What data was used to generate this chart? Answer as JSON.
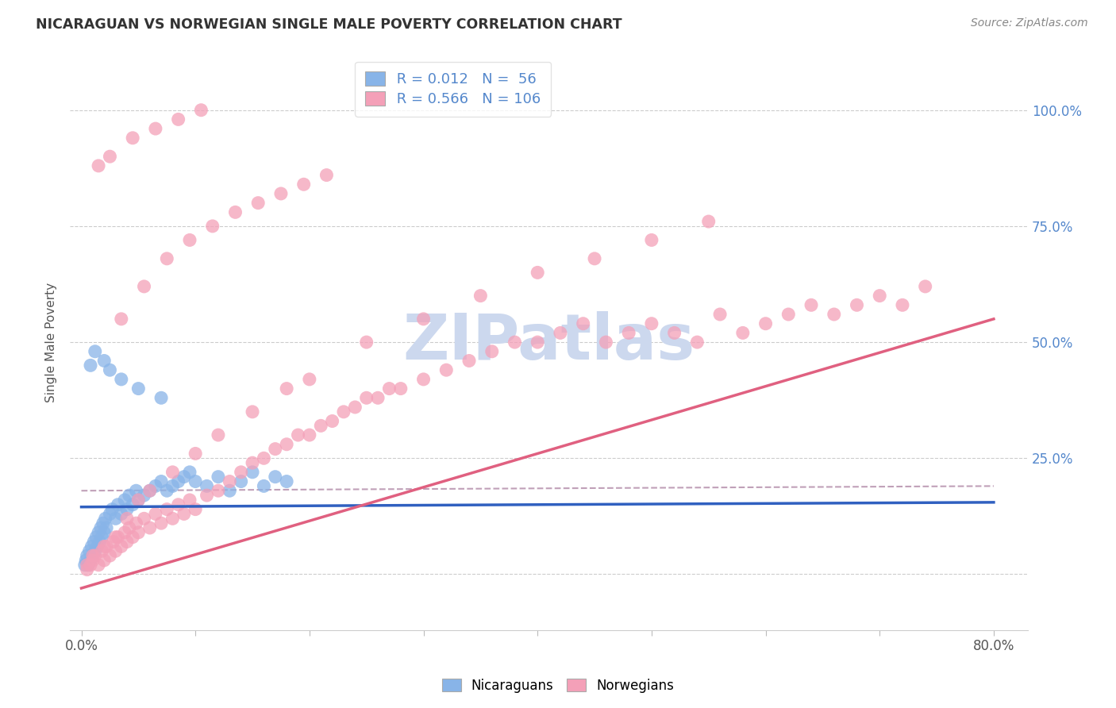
{
  "title": "NICARAGUAN VS NORWEGIAN SINGLE MALE POVERTY CORRELATION CHART",
  "source": "Source: ZipAtlas.com",
  "ylabel": "Single Male Poverty",
  "ytick_values": [
    0.0,
    0.25,
    0.5,
    0.75,
    1.0
  ],
  "ytick_labels": [
    "",
    "25.0%",
    "50.0%",
    "75.0%",
    "100.0%"
  ],
  "xtick_positions": [
    0.0,
    0.1,
    0.2,
    0.3,
    0.4,
    0.5,
    0.6,
    0.7,
    0.8
  ],
  "xtick_labels": [
    "0.0%",
    "",
    "",
    "",
    "",
    "",
    "",
    "",
    "80.0%"
  ],
  "xlim": [
    -0.01,
    0.83
  ],
  "ylim": [
    -0.12,
    1.12
  ],
  "blue_color": "#88b4e8",
  "pink_color": "#f4a0b8",
  "blue_line_color": "#3060c0",
  "pink_line_color": "#e06080",
  "pink_dash_color": "#c0a0b8",
  "watermark_text": "ZIPatlas",
  "watermark_color": "#ccd8ee",
  "R_blue": 0.012,
  "N_blue": 56,
  "R_pink": 0.566,
  "N_pink": 106,
  "background_color": "#ffffff",
  "grid_color": "#cccccc",
  "tick_color": "#5588cc",
  "title_color": "#333333",
  "source_color": "#888888",
  "legend_label_color": "#5588cc",
  "blue_x": [
    0.003,
    0.004,
    0.005,
    0.006,
    0.007,
    0.008,
    0.009,
    0.01,
    0.011,
    0.012,
    0.013,
    0.014,
    0.015,
    0.016,
    0.017,
    0.018,
    0.019,
    0.02,
    0.021,
    0.022,
    0.025,
    0.027,
    0.03,
    0.032,
    0.035,
    0.038,
    0.04,
    0.042,
    0.045,
    0.048,
    0.05,
    0.055,
    0.06,
    0.065,
    0.07,
    0.075,
    0.08,
    0.085,
    0.09,
    0.095,
    0.1,
    0.11,
    0.12,
    0.13,
    0.14,
    0.15,
    0.16,
    0.17,
    0.18,
    0.008,
    0.012,
    0.02,
    0.025,
    0.035,
    0.05,
    0.07
  ],
  "blue_y": [
    0.02,
    0.03,
    0.04,
    0.02,
    0.05,
    0.03,
    0.06,
    0.04,
    0.07,
    0.05,
    0.08,
    0.06,
    0.09,
    0.07,
    0.1,
    0.08,
    0.11,
    0.09,
    0.12,
    0.1,
    0.13,
    0.14,
    0.12,
    0.15,
    0.13,
    0.16,
    0.14,
    0.17,
    0.15,
    0.18,
    0.16,
    0.17,
    0.18,
    0.19,
    0.2,
    0.18,
    0.19,
    0.2,
    0.21,
    0.22,
    0.2,
    0.19,
    0.21,
    0.18,
    0.2,
    0.22,
    0.19,
    0.21,
    0.2,
    0.45,
    0.48,
    0.46,
    0.44,
    0.42,
    0.4,
    0.38
  ],
  "pink_x": [
    0.005,
    0.008,
    0.01,
    0.012,
    0.015,
    0.018,
    0.02,
    0.022,
    0.025,
    0.028,
    0.03,
    0.032,
    0.035,
    0.038,
    0.04,
    0.042,
    0.045,
    0.048,
    0.05,
    0.055,
    0.06,
    0.065,
    0.07,
    0.075,
    0.08,
    0.085,
    0.09,
    0.095,
    0.1,
    0.11,
    0.12,
    0.13,
    0.14,
    0.15,
    0.16,
    0.17,
    0.18,
    0.19,
    0.2,
    0.21,
    0.22,
    0.23,
    0.24,
    0.25,
    0.26,
    0.27,
    0.28,
    0.3,
    0.32,
    0.34,
    0.36,
    0.38,
    0.4,
    0.42,
    0.44,
    0.46,
    0.48,
    0.5,
    0.52,
    0.54,
    0.56,
    0.58,
    0.6,
    0.62,
    0.64,
    0.66,
    0.68,
    0.7,
    0.72,
    0.74,
    0.005,
    0.01,
    0.02,
    0.03,
    0.04,
    0.05,
    0.06,
    0.08,
    0.1,
    0.12,
    0.15,
    0.18,
    0.2,
    0.25,
    0.3,
    0.35,
    0.4,
    0.45,
    0.5,
    0.55,
    0.035,
    0.055,
    0.075,
    0.095,
    0.115,
    0.135,
    0.155,
    0.175,
    0.195,
    0.215,
    0.015,
    0.025,
    0.045,
    0.065,
    0.085,
    0.105
  ],
  "pink_y": [
    0.01,
    0.02,
    0.03,
    0.04,
    0.02,
    0.05,
    0.03,
    0.06,
    0.04,
    0.07,
    0.05,
    0.08,
    0.06,
    0.09,
    0.07,
    0.1,
    0.08,
    0.11,
    0.09,
    0.12,
    0.1,
    0.13,
    0.11,
    0.14,
    0.12,
    0.15,
    0.13,
    0.16,
    0.14,
    0.17,
    0.18,
    0.2,
    0.22,
    0.24,
    0.25,
    0.27,
    0.28,
    0.3,
    0.3,
    0.32,
    0.33,
    0.35,
    0.36,
    0.38,
    0.38,
    0.4,
    0.4,
    0.42,
    0.44,
    0.46,
    0.48,
    0.5,
    0.5,
    0.52,
    0.54,
    0.5,
    0.52,
    0.54,
    0.52,
    0.5,
    0.56,
    0.52,
    0.54,
    0.56,
    0.58,
    0.56,
    0.58,
    0.6,
    0.58,
    0.62,
    0.02,
    0.04,
    0.06,
    0.08,
    0.12,
    0.16,
    0.18,
    0.22,
    0.26,
    0.3,
    0.35,
    0.4,
    0.42,
    0.5,
    0.55,
    0.6,
    0.65,
    0.68,
    0.72,
    0.76,
    0.55,
    0.62,
    0.68,
    0.72,
    0.75,
    0.78,
    0.8,
    0.82,
    0.84,
    0.86,
    0.88,
    0.9,
    0.94,
    0.96,
    0.98,
    1.0
  ],
  "blue_reg": [
    0.0,
    0.8,
    0.145,
    0.155
  ],
  "pink_reg_solid": [
    0.0,
    0.8,
    -0.03,
    0.55
  ],
  "pink_reg_dash": [
    0.0,
    0.8,
    0.18,
    0.19
  ]
}
